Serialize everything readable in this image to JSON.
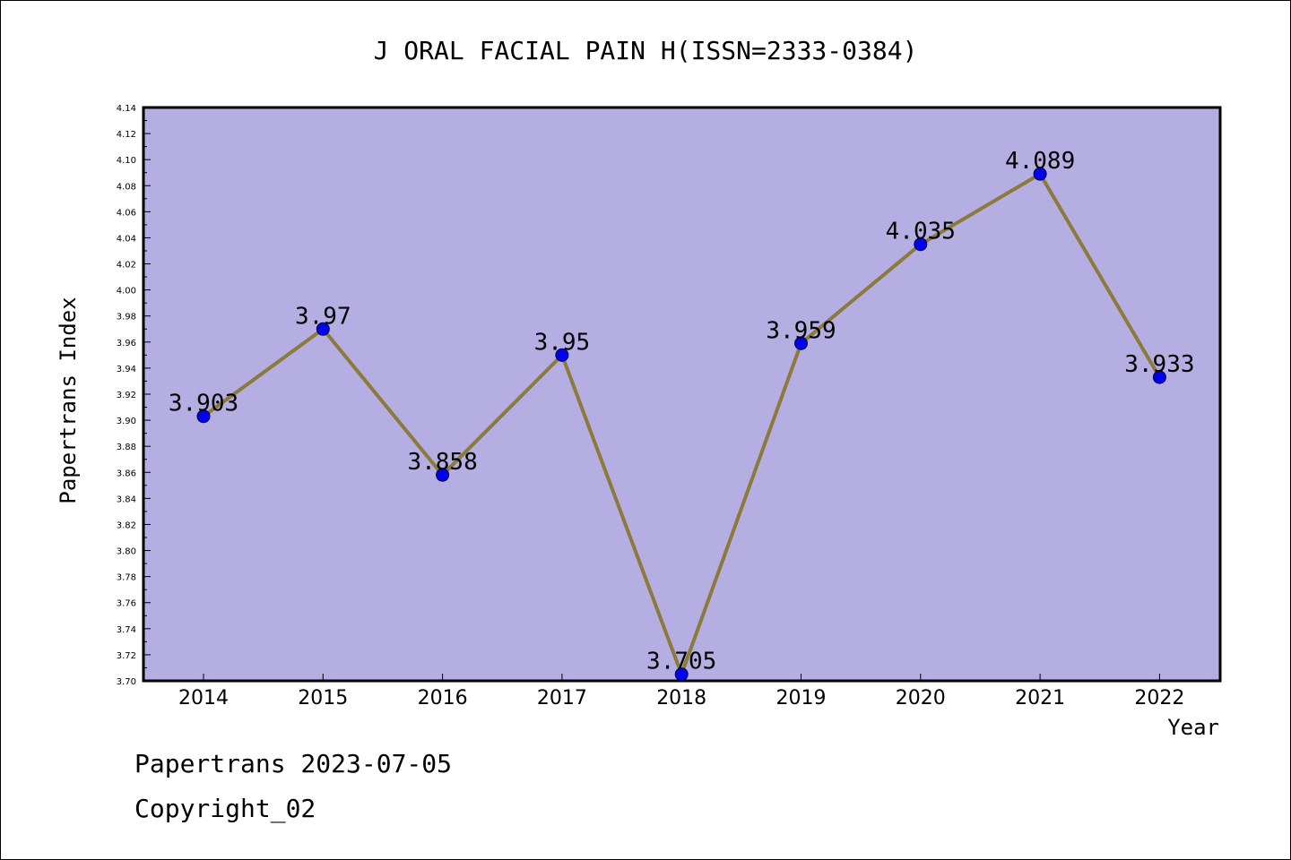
{
  "chart_data": {
    "type": "line",
    "title": "J ORAL FACIAL PAIN H(ISSN=2333-0384)",
    "xlabel": "Year",
    "ylabel": "Papertrans Index",
    "categories": [
      "2014",
      "2015",
      "2016",
      "2017",
      "2018",
      "2019",
      "2020",
      "2021",
      "2022"
    ],
    "values": [
      3.903,
      3.97,
      3.858,
      3.95,
      3.705,
      3.959,
      4.035,
      4.089,
      3.933
    ],
    "data_labels": [
      "3.903",
      "3.97",
      "3.858",
      "3.95",
      "3.705",
      "3.959",
      "4.035",
      "4.089",
      "3.933"
    ],
    "ylim": [
      3.7,
      4.14
    ],
    "yticks": [
      "3.70",
      "3.72",
      "3.74",
      "3.76",
      "3.78",
      "3.80",
      "3.82",
      "3.84",
      "3.86",
      "3.88",
      "3.90",
      "3.92",
      "3.94",
      "3.96",
      "3.98",
      "4.00",
      "4.02",
      "4.04",
      "4.06",
      "4.08",
      "4.10",
      "4.12",
      "4.14"
    ],
    "grid": false,
    "colors": {
      "plot_background": "#b4aee3",
      "line": "#8b7a3a",
      "marker": "#0000ee"
    }
  },
  "footer": {
    "source": "Papertrans 2023-07-05",
    "copyright": "Copyright_02"
  }
}
